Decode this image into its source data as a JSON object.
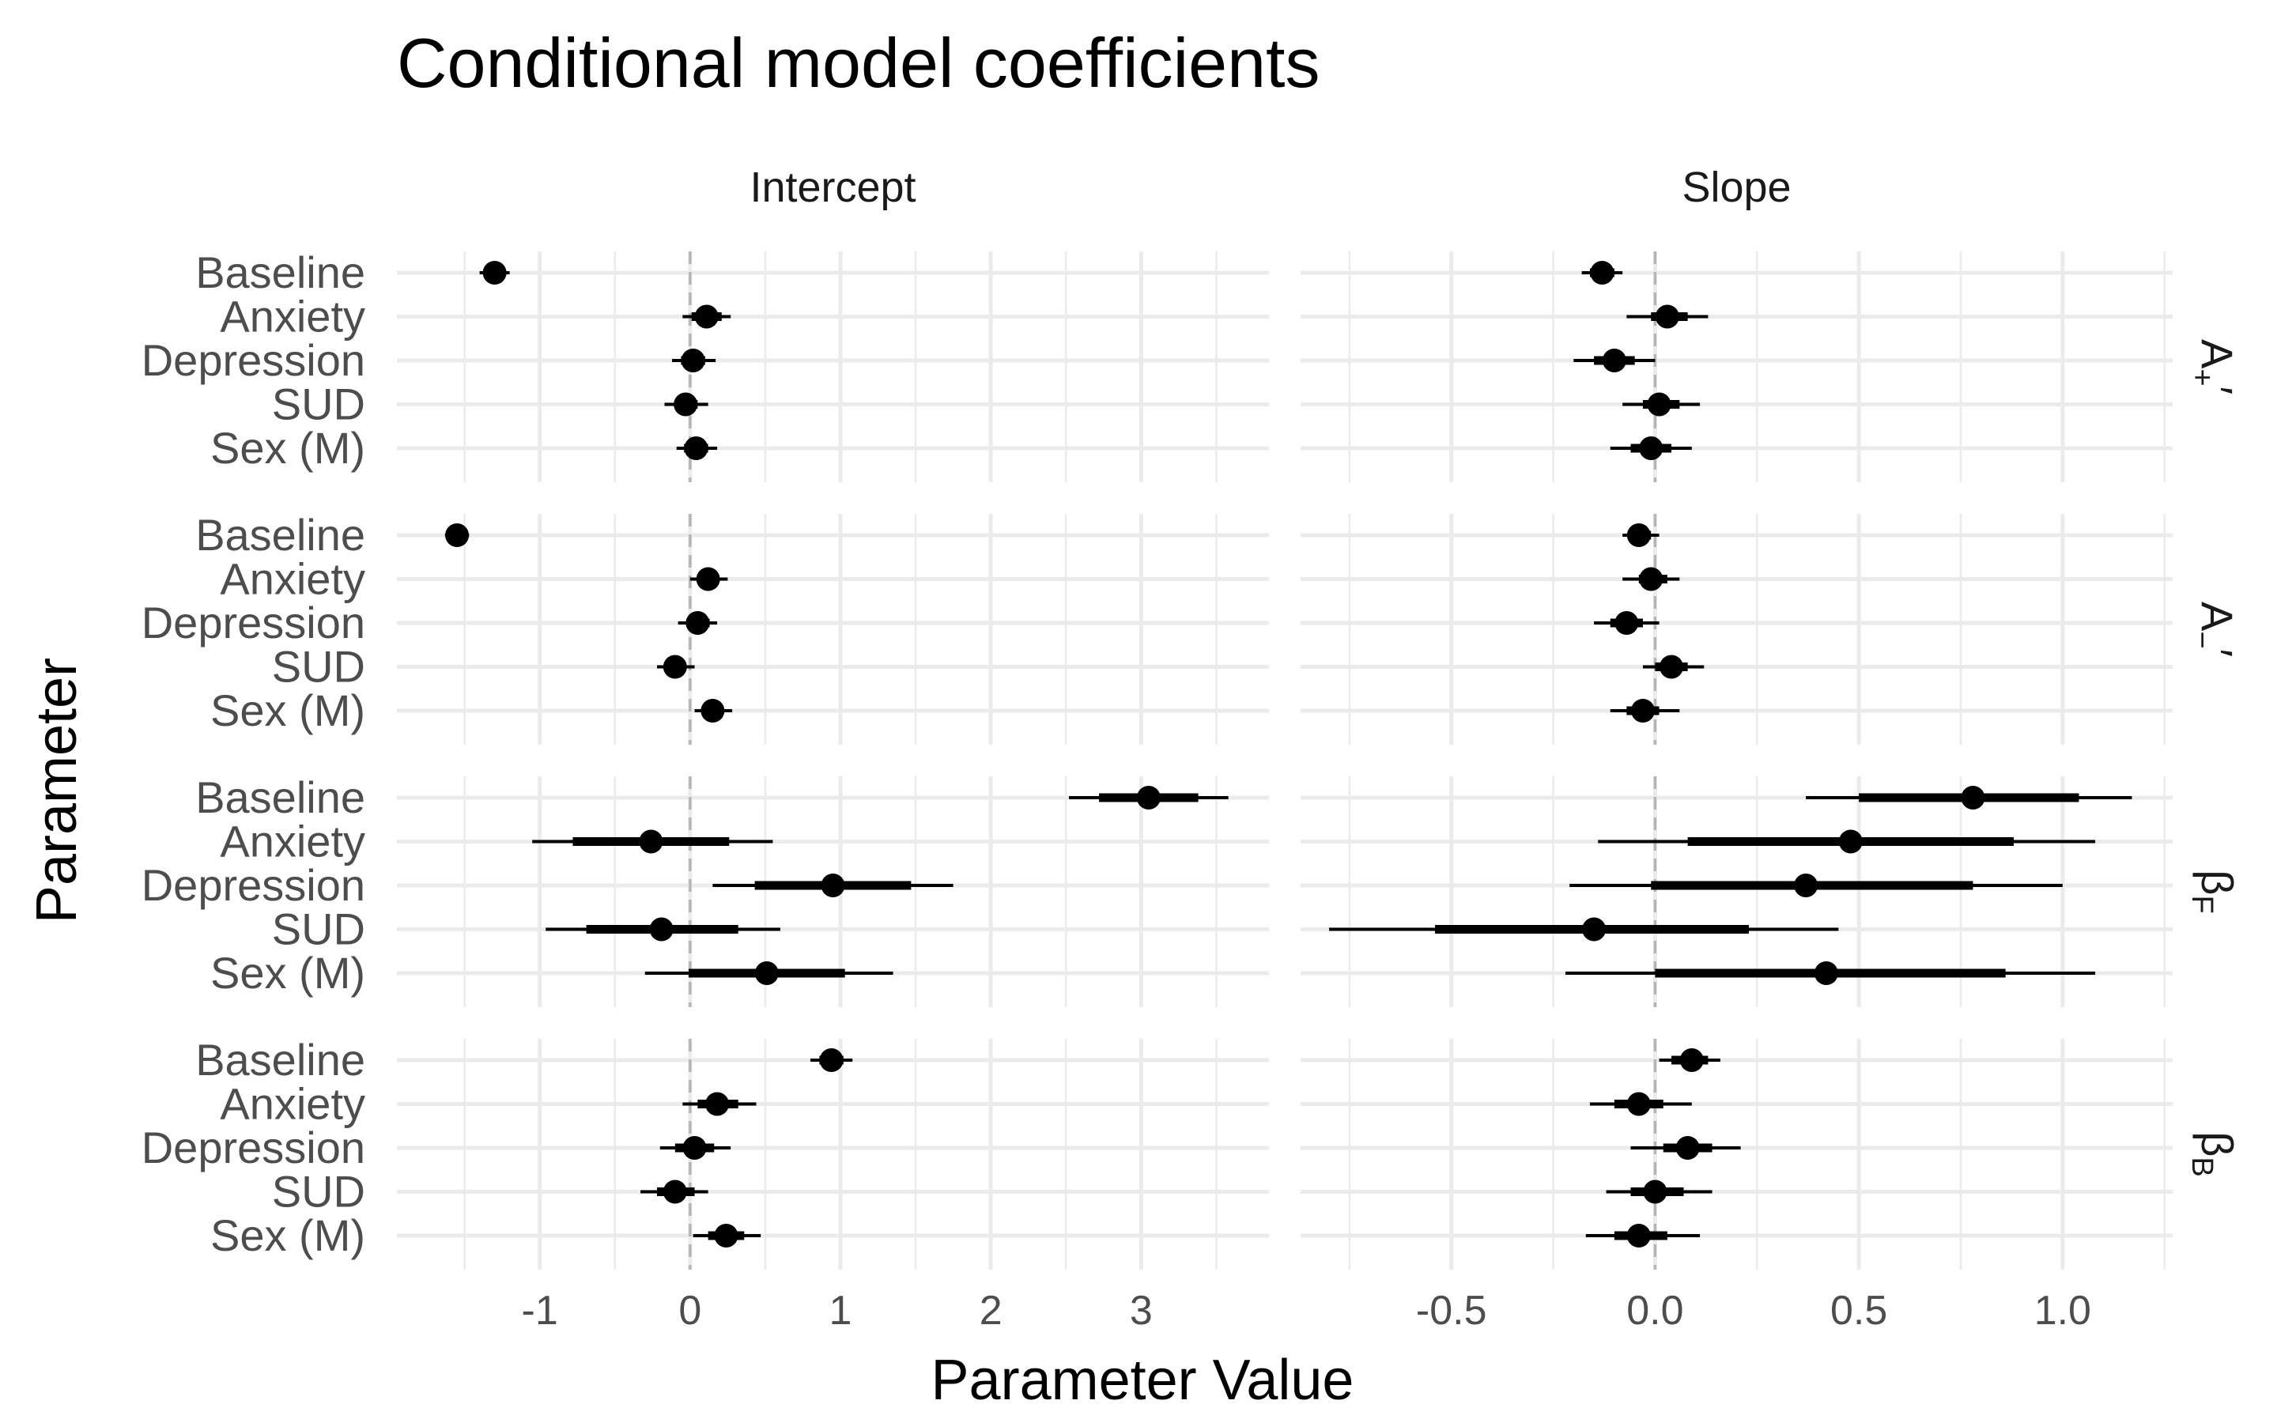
{
  "chart_data": {
    "type": "scatter",
    "subtype": "pointrange (interval plot)",
    "title": "Conditional model coefficients",
    "xlabel": "Parameter Value",
    "ylabel": "Parameter",
    "columns": [
      {
        "name": "Intercept",
        "xlim": [
          -1.95,
          3.85
        ],
        "ticks": [
          -1,
          0,
          1,
          2,
          3
        ],
        "tick_labels": [
          "-1",
          "0",
          "1",
          "2",
          "3"
        ]
      },
      {
        "name": "Slope",
        "xlim": [
          -0.87,
          1.27
        ],
        "ticks": [
          -0.5,
          0.0,
          0.5,
          1.0
        ],
        "tick_labels": [
          "-0.5",
          "0.0",
          "0.5",
          "1.0"
        ]
      }
    ],
    "rows": [
      {
        "name": "A₊′",
        "base": "A",
        "sub": "+",
        "prime": true
      },
      {
        "name": "A₋′",
        "base": "A",
        "sub": "−",
        "prime": true
      },
      {
        "name": "βF",
        "base": "β",
        "sub": "F",
        "prime": false
      },
      {
        "name": "βB",
        "base": "β",
        "sub": "B",
        "prime": false
      }
    ],
    "parameters": [
      "Baseline",
      "Anxiety",
      "Depression",
      "SUD",
      "Sex (M)"
    ],
    "legend": "none",
    "grid": true,
    "reference_line": {
      "x": 0,
      "style": "dashed"
    },
    "series": [
      {
        "row": "A₊′",
        "column": "Intercept",
        "points": [
          {
            "parameter": "Baseline",
            "mean": -1.3,
            "inner": [
              -1.36,
              -1.24
            ],
            "outer": [
              -1.4,
              -1.2
            ]
          },
          {
            "parameter": "Anxiety",
            "mean": 0.11,
            "inner": [
              0.01,
              0.21
            ],
            "outer": [
              -0.05,
              0.27
            ]
          },
          {
            "parameter": "Depression",
            "mean": 0.02,
            "inner": [
              -0.06,
              0.1
            ],
            "outer": [
              -0.12,
              0.17
            ]
          },
          {
            "parameter": "SUD",
            "mean": -0.03,
            "inner": [
              -0.1,
              0.05
            ],
            "outer": [
              -0.17,
              0.12
            ]
          },
          {
            "parameter": "Sex (M)",
            "mean": 0.04,
            "inner": [
              -0.04,
              0.12
            ],
            "outer": [
              -0.09,
              0.18
            ]
          }
        ]
      },
      {
        "row": "A₊′",
        "column": "Slope",
        "points": [
          {
            "parameter": "Baseline",
            "mean": -0.13,
            "inner": [
              -0.16,
              -0.1
            ],
            "outer": [
              -0.18,
              -0.08
            ]
          },
          {
            "parameter": "Anxiety",
            "mean": 0.03,
            "inner": [
              -0.01,
              0.08
            ],
            "outer": [
              -0.07,
              0.13
            ]
          },
          {
            "parameter": "Depression",
            "mean": -0.1,
            "inner": [
              -0.15,
              -0.05
            ],
            "outer": [
              -0.2,
              0.0
            ]
          },
          {
            "parameter": "SUD",
            "mean": 0.01,
            "inner": [
              -0.03,
              0.06
            ],
            "outer": [
              -0.08,
              0.11
            ]
          },
          {
            "parameter": "Sex (M)",
            "mean": -0.01,
            "inner": [
              -0.06,
              0.04
            ],
            "outer": [
              -0.11,
              0.09
            ]
          }
        ]
      },
      {
        "row": "A₋′",
        "column": "Intercept",
        "points": [
          {
            "parameter": "Baseline",
            "mean": -1.55,
            "inner": [
              -1.6,
              -1.5
            ],
            "outer": [
              -1.63,
              -1.47
            ]
          },
          {
            "parameter": "Anxiety",
            "mean": 0.12,
            "inner": [
              0.05,
              0.19
            ],
            "outer": [
              0.0,
              0.25
            ]
          },
          {
            "parameter": "Depression",
            "mean": 0.05,
            "inner": [
              -0.02,
              0.13
            ],
            "outer": [
              -0.08,
              0.18
            ]
          },
          {
            "parameter": "SUD",
            "mean": -0.1,
            "inner": [
              -0.17,
              -0.03
            ],
            "outer": [
              -0.22,
              0.03
            ]
          },
          {
            "parameter": "Sex (M)",
            "mean": 0.15,
            "inner": [
              0.08,
              0.22
            ],
            "outer": [
              0.03,
              0.28
            ]
          }
        ]
      },
      {
        "row": "A₋′",
        "column": "Slope",
        "points": [
          {
            "parameter": "Baseline",
            "mean": -0.04,
            "inner": [
              -0.06,
              -0.01
            ],
            "outer": [
              -0.08,
              0.01
            ]
          },
          {
            "parameter": "Anxiety",
            "mean": -0.01,
            "inner": [
              -0.04,
              0.03
            ],
            "outer": [
              -0.08,
              0.06
            ]
          },
          {
            "parameter": "Depression",
            "mean": -0.07,
            "inner": [
              -0.11,
              -0.03
            ],
            "outer": [
              -0.15,
              0.01
            ]
          },
          {
            "parameter": "SUD",
            "mean": 0.04,
            "inner": [
              0.0,
              0.08
            ],
            "outer": [
              -0.03,
              0.12
            ]
          },
          {
            "parameter": "Sex (M)",
            "mean": -0.03,
            "inner": [
              -0.07,
              0.01
            ],
            "outer": [
              -0.11,
              0.06
            ]
          }
        ]
      },
      {
        "row": "βF",
        "column": "Intercept",
        "points": [
          {
            "parameter": "Baseline",
            "mean": 3.05,
            "inner": [
              2.72,
              3.38
            ],
            "outer": [
              2.52,
              3.58
            ]
          },
          {
            "parameter": "Anxiety",
            "mean": -0.26,
            "inner": [
              -0.78,
              0.26
            ],
            "outer": [
              -1.05,
              0.55
            ]
          },
          {
            "parameter": "Depression",
            "mean": 0.95,
            "inner": [
              0.43,
              1.47
            ],
            "outer": [
              0.15,
              1.75
            ]
          },
          {
            "parameter": "SUD",
            "mean": -0.19,
            "inner": [
              -0.69,
              0.32
            ],
            "outer": [
              -0.96,
              0.6
            ]
          },
          {
            "parameter": "Sex (M)",
            "mean": 0.51,
            "inner": [
              -0.01,
              1.03
            ],
            "outer": [
              -0.3,
              1.35
            ]
          }
        ]
      },
      {
        "row": "βF",
        "column": "Slope",
        "points": [
          {
            "parameter": "Baseline",
            "mean": 0.78,
            "inner": [
              0.5,
              1.04
            ],
            "outer": [
              0.37,
              1.17
            ]
          },
          {
            "parameter": "Anxiety",
            "mean": 0.48,
            "inner": [
              0.08,
              0.88
            ],
            "outer": [
              -0.14,
              1.08
            ]
          },
          {
            "parameter": "Depression",
            "mean": 0.37,
            "inner": [
              -0.01,
              0.78
            ],
            "outer": [
              -0.21,
              1.0
            ]
          },
          {
            "parameter": "SUD",
            "mean": -0.15,
            "inner": [
              -0.54,
              0.23
            ],
            "outer": [
              -0.8,
              0.45
            ]
          },
          {
            "parameter": "Sex (M)",
            "mean": 0.42,
            "inner": [
              0.0,
              0.86
            ],
            "outer": [
              -0.22,
              1.08
            ]
          }
        ]
      },
      {
        "row": "βB",
        "column": "Intercept",
        "points": [
          {
            "parameter": "Baseline",
            "mean": 0.94,
            "inner": [
              0.86,
              1.02
            ],
            "outer": [
              0.8,
              1.08
            ]
          },
          {
            "parameter": "Anxiety",
            "mean": 0.18,
            "inner": [
              0.05,
              0.32
            ],
            "outer": [
              -0.05,
              0.44
            ]
          },
          {
            "parameter": "Depression",
            "mean": 0.03,
            "inner": [
              -0.1,
              0.16
            ],
            "outer": [
              -0.2,
              0.27
            ]
          },
          {
            "parameter": "SUD",
            "mean": -0.1,
            "inner": [
              -0.22,
              0.03
            ],
            "outer": [
              -0.33,
              0.12
            ]
          },
          {
            "parameter": "Sex (M)",
            "mean": 0.24,
            "inner": [
              0.12,
              0.36
            ],
            "outer": [
              0.02,
              0.47
            ]
          }
        ]
      },
      {
        "row": "βB",
        "column": "Slope",
        "points": [
          {
            "parameter": "Baseline",
            "mean": 0.09,
            "inner": [
              0.04,
              0.13
            ],
            "outer": [
              0.01,
              0.16
            ]
          },
          {
            "parameter": "Anxiety",
            "mean": -0.04,
            "inner": [
              -0.1,
              0.02
            ],
            "outer": [
              -0.16,
              0.09
            ]
          },
          {
            "parameter": "Depression",
            "mean": 0.08,
            "inner": [
              0.02,
              0.14
            ],
            "outer": [
              -0.06,
              0.21
            ]
          },
          {
            "parameter": "SUD",
            "mean": 0.0,
            "inner": [
              -0.06,
              0.07
            ],
            "outer": [
              -0.12,
              0.14
            ]
          },
          {
            "parameter": "Sex (M)",
            "mean": -0.04,
            "inner": [
              -0.1,
              0.03
            ],
            "outer": [
              -0.17,
              0.11
            ]
          }
        ]
      }
    ]
  }
}
